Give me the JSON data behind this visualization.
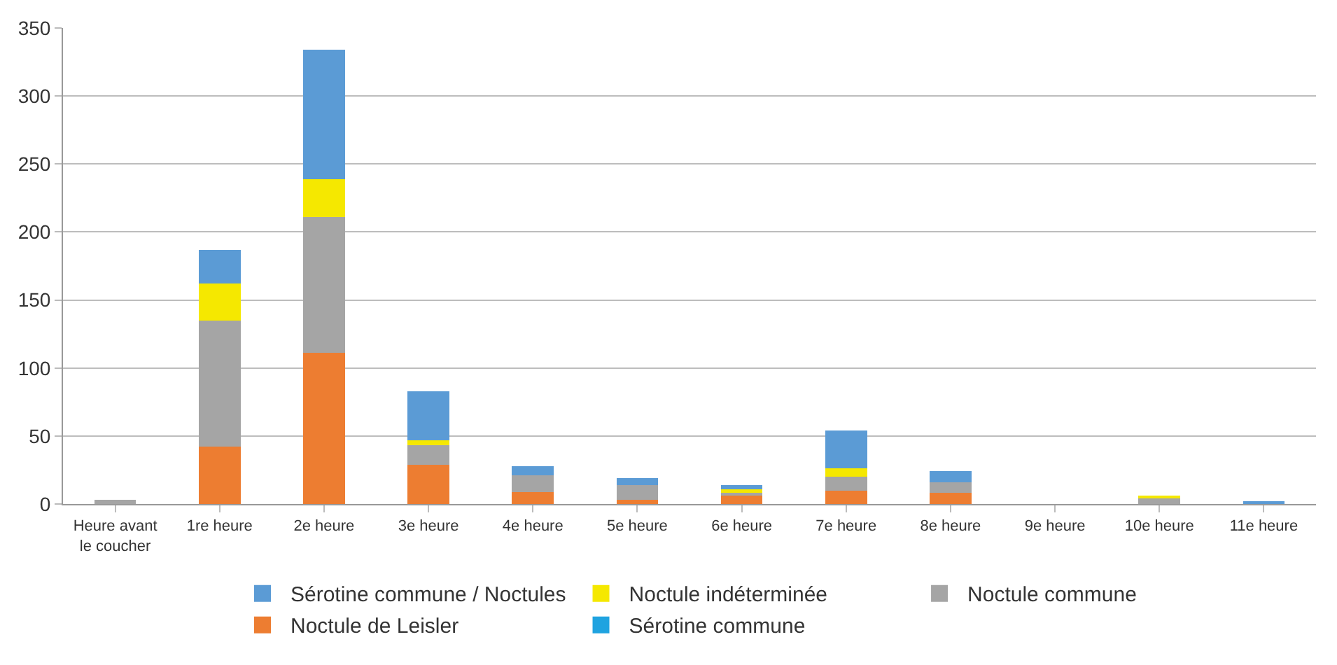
{
  "chart_data": {
    "type": "bar",
    "stacked": true,
    "categories": [
      "Heure avant\nle coucher",
      "1re heure",
      "2e heure",
      "3e heure",
      "4e heure",
      "5e heure",
      "6e heure",
      "7e heure",
      "8e heure",
      "9e heure",
      "10e heure",
      "11e heure"
    ],
    "series": [
      {
        "name": "Sérotine commune",
        "color": "#1fa3e0",
        "values": [
          0,
          0,
          0,
          0,
          0,
          0,
          0,
          0,
          0,
          0,
          0,
          0
        ]
      },
      {
        "name": "Noctule de Leisler",
        "color": "#ed7d31",
        "values": [
          0,
          42,
          111,
          29,
          9,
          3,
          7,
          10,
          8,
          0,
          0,
          0
        ]
      },
      {
        "name": "Noctule commune",
        "color": "#a5a5a5",
        "values": [
          3,
          93,
          100,
          14,
          12,
          11,
          2,
          10,
          8,
          0,
          5,
          0
        ]
      },
      {
        "name": "Noctule indéterminée",
        "color": "#f5e800",
        "values": [
          0,
          27,
          28,
          4,
          0,
          0,
          2,
          6,
          0,
          0,
          1,
          0
        ]
      },
      {
        "name": "Sérotine commune / Noctules",
        "color": "#5b9bd5",
        "values": [
          0,
          25,
          95,
          36,
          7,
          5,
          3,
          28,
          8,
          0,
          0,
          2
        ]
      }
    ],
    "ylim": [
      0,
      350
    ],
    "yticks": [
      0,
      50,
      100,
      150,
      200,
      250,
      300,
      350
    ],
    "grid": "y",
    "legend": "bottom"
  }
}
